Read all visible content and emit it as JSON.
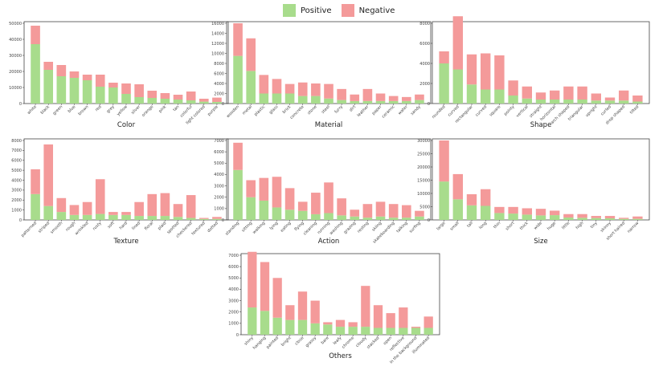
{
  "legend": {
    "positive_label": "Positive",
    "negative_label": "Negative"
  },
  "colors": {
    "positive": "#a8dc8c",
    "negative": "#f49a9a",
    "frame": "#444444"
  },
  "chart_data": [
    {
      "type": "bar",
      "stacked": true,
      "title": "Color",
      "ylim": [
        0,
        50000
      ],
      "yticks": [
        0,
        10000,
        20000,
        30000,
        40000,
        50000
      ],
      "categories": [
        "white",
        "black",
        "green",
        "blue",
        "brown",
        "red",
        "grey",
        "yellow",
        "silver",
        "orange",
        "pink",
        "tan",
        "colorful",
        "light colored",
        "purple"
      ],
      "series": [
        {
          "name": "Positive",
          "values": [
            37000,
            21000,
            17000,
            16000,
            14500,
            10500,
            10000,
            6000,
            4000,
            3500,
            3000,
            2500,
            2000,
            1200,
            1000
          ]
        },
        {
          "name": "Negative",
          "values": [
            11500,
            5000,
            7000,
            4000,
            3500,
            7500,
            3000,
            6500,
            8000,
            4500,
            3500,
            3000,
            5500,
            1800,
            2700
          ]
        }
      ]
    },
    {
      "type": "bar",
      "stacked": true,
      "title": "Material",
      "ylim": [
        0,
        16000
      ],
      "yticks": [
        0,
        2000,
        4000,
        6000,
        8000,
        10000,
        12000,
        14000,
        16000
      ],
      "categories": [
        "wooden",
        "metal",
        "plastic",
        "glass",
        "brick",
        "concrete",
        "stone",
        "steel",
        "furry",
        "dirt",
        "leather",
        "paper",
        "ceramic",
        "water",
        "sandy"
      ],
      "series": [
        {
          "name": "Positive",
          "values": [
            9500,
            6500,
            2000,
            2000,
            2000,
            1500,
            1500,
            1000,
            700,
            500,
            500,
            500,
            500,
            500,
            700
          ]
        },
        {
          "name": "Negative",
          "values": [
            6500,
            6500,
            3700,
            2900,
            1900,
            2700,
            2500,
            2900,
            2200,
            1300,
            2400,
            1500,
            1000,
            800,
            1100
          ]
        }
      ]
    },
    {
      "type": "bar",
      "stacked": true,
      "title": "Shape",
      "ylim": [
        0,
        8000
      ],
      "yticks": [
        0,
        2000,
        4000,
        6000,
        8000
      ],
      "categories": [
        "rounded",
        "curved",
        "rectangular",
        "curved",
        "square",
        "pointy",
        "vertical",
        "straight",
        "horizontal",
        "arch shaped",
        "triangular",
        "upright",
        "curled",
        "drop shaped",
        "tilted"
      ],
      "series": [
        {
          "name": "Positive",
          "values": [
            4000,
            3400,
            1900,
            1400,
            1400,
            800,
            500,
            400,
            400,
            400,
            400,
            300,
            300,
            300,
            200
          ]
        },
        {
          "name": "Negative",
          "values": [
            1200,
            5300,
            3000,
            3600,
            3400,
            1500,
            1200,
            700,
            900,
            1300,
            1300,
            700,
            300,
            1000,
            600
          ]
        }
      ]
    },
    {
      "type": "bar",
      "stacked": true,
      "title": "Texture",
      "ylim": [
        0,
        8000
      ],
      "yticks": [
        0,
        1000,
        2000,
        3000,
        4000,
        5000,
        6000,
        7000,
        8000
      ],
      "categories": [
        "patterned",
        "striped",
        "smooth",
        "rough",
        "wrinkled",
        "rusty",
        "soft",
        "hard",
        "lined",
        "floral",
        "plaid",
        "spotted",
        "checkered",
        "textured",
        "dotted"
      ],
      "series": [
        {
          "name": "Positive",
          "values": [
            2600,
            1400,
            800,
            500,
            500,
            600,
            500,
            500,
            400,
            400,
            400,
            300,
            200,
            100,
            100
          ]
        },
        {
          "name": "Negative",
          "values": [
            2500,
            6200,
            1400,
            1000,
            1300,
            3500,
            300,
            300,
            1400,
            2200,
            2300,
            1300,
            2300,
            100,
            200
          ]
        }
      ]
    },
    {
      "type": "bar",
      "stacked": true,
      "title": "Action",
      "ylim": [
        0,
        7000
      ],
      "yticks": [
        0,
        1000,
        2000,
        3000,
        4000,
        5000,
        6000,
        7000
      ],
      "categories": [
        "standing",
        "sitting",
        "walking",
        "lying",
        "eating",
        "flying",
        "cleaning",
        "running",
        "washing",
        "grazing",
        "resting",
        "skiing",
        "skateboarding",
        "talking",
        "surfing"
      ],
      "series": [
        {
          "name": "Positive",
          "values": [
            4400,
            2000,
            1700,
            1100,
            900,
            800,
            500,
            600,
            400,
            300,
            200,
            300,
            200,
            200,
            300
          ]
        },
        {
          "name": "Negative",
          "values": [
            2400,
            1500,
            2000,
            2700,
            1900,
            800,
            1900,
            2700,
            1500,
            600,
            1200,
            1300,
            1200,
            1100,
            500
          ]
        }
      ]
    },
    {
      "type": "bar",
      "stacked": true,
      "title": "Size",
      "ylim": [
        0,
        30000
      ],
      "yticks": [
        0,
        5000,
        10000,
        15000,
        20000,
        25000,
        30000
      ],
      "categories": [
        "large",
        "small",
        "tall",
        "long",
        "thin",
        "short",
        "thick",
        "wide",
        "huge",
        "little",
        "high",
        "tiny",
        "skinny",
        "short haired",
        "narrow"
      ],
      "series": [
        {
          "name": "Positive",
          "values": [
            14500,
            7800,
            5500,
            5300,
            2600,
            2400,
            2000,
            1700,
            1800,
            900,
            800,
            700,
            600,
            400,
            400
          ]
        },
        {
          "name": "Negative",
          "values": [
            15500,
            9500,
            4200,
            6300,
            2300,
            2500,
            2400,
            2500,
            1700,
            1300,
            1400,
            800,
            900,
            400,
            900
          ]
        }
      ]
    },
    {
      "type": "bar",
      "stacked": true,
      "title": "Others",
      "ylim": [
        0,
        7000
      ],
      "yticks": [
        0,
        1000,
        2000,
        3000,
        4000,
        5000,
        6000,
        7000
      ],
      "categories": [
        "shiny",
        "hanging",
        "painted",
        "bright",
        "close",
        "grassy",
        "bare",
        "leafy",
        "chrome",
        "cloudy",
        "stacked",
        "open",
        "reflective",
        "in the background",
        "illuminated"
      ],
      "series": [
        {
          "name": "Positive",
          "values": [
            2400,
            2100,
            1500,
            1300,
            1300,
            1000,
            900,
            700,
            700,
            700,
            600,
            600,
            600,
            600,
            600
          ]
        },
        {
          "name": "Negative",
          "values": [
            4900,
            4300,
            3500,
            1300,
            2500,
            2000,
            200,
            600,
            400,
            3600,
            2000,
            1300,
            1800,
            100,
            1000
          ]
        }
      ]
    }
  ]
}
